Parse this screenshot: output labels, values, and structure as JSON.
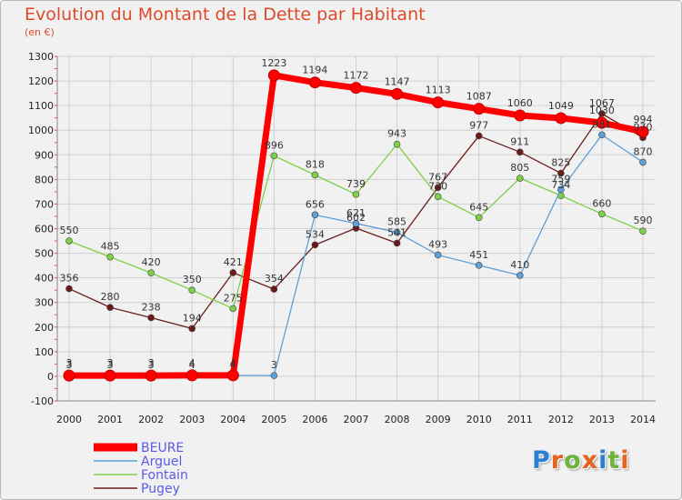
{
  "header": {
    "title": "Evolution du Montant de la Dette par Habitant",
    "subtitle": "(en €)"
  },
  "logo": {
    "text": "Proxiti",
    "letter_colors": [
      "#2a7fd4",
      "#e4641e",
      "#6fb33c",
      "#e4641e",
      "#2a7fd4",
      "#6fb33c",
      "#e4641e"
    ]
  },
  "chart_data": {
    "type": "line",
    "title": "Evolution du Montant de la Dette par Habitant",
    "subtitle": "(en €)",
    "xlabel": "",
    "ylabel": "",
    "x": [
      2000,
      2001,
      2002,
      2003,
      2004,
      2005,
      2006,
      2007,
      2008,
      2009,
      2010,
      2011,
      2012,
      2013,
      2014
    ],
    "ylim": [
      -100,
      1300
    ],
    "yticks": [
      -100,
      0,
      100,
      200,
      300,
      400,
      500,
      600,
      700,
      800,
      900,
      1000,
      1100,
      1200,
      1300
    ],
    "grid": true,
    "legend_position": "bottom-left",
    "series": [
      {
        "name": "Pugey",
        "color": "#6b1a1a",
        "values": [
          356,
          280,
          238,
          194,
          421,
          354,
          534,
          602,
          541,
          767,
          977,
          911,
          825,
          1067,
          970
        ]
      },
      {
        "name": "Fontain",
        "color": "#7fcf47",
        "values": [
          550,
          485,
          420,
          350,
          275,
          896,
          818,
          739,
          943,
          730,
          645,
          805,
          734,
          660,
          590
        ]
      },
      {
        "name": "Arguel",
        "color": "#5ea0d8",
        "values": [
          3,
          3,
          3,
          4,
          4,
          3,
          656,
          621,
          585,
          493,
          451,
          410,
          759,
          981,
          870
        ]
      },
      {
        "name": "BEURE",
        "color": "#ff0000",
        "values": [
          3,
          3,
          3,
          4,
          4,
          1223,
          1194,
          1172,
          1147,
          1113,
          1087,
          1060,
          1049,
          1030,
          994
        ]
      }
    ],
    "data_labels": {
      "Pugey": [
        "356",
        "280",
        "238",
        "194",
        "421",
        "354",
        "534",
        "602",
        "541",
        "767",
        "977",
        "911",
        "825",
        "1067",
        "970"
      ],
      "Fontain": [
        "550",
        "485",
        "420",
        "350",
        "275",
        "896",
        "818",
        "739",
        "943",
        "730",
        "645",
        "805",
        "734",
        "660",
        "590"
      ],
      "Arguel": [
        "3",
        "3",
        "3",
        "4",
        "4",
        "3",
        "656",
        "621",
        "585",
        "493",
        "451",
        "410",
        "759",
        "981",
        "870"
      ],
      "BEURE": [
        "3",
        "3",
        "3",
        "4",
        "4",
        "1223",
        "1194",
        "1172",
        "1147",
        "1113",
        "1087",
        "1060",
        "1049",
        "1030",
        "994"
      ]
    },
    "legend": [
      "BEURE",
      "Arguel",
      "Fontain",
      "Pugey"
    ]
  }
}
